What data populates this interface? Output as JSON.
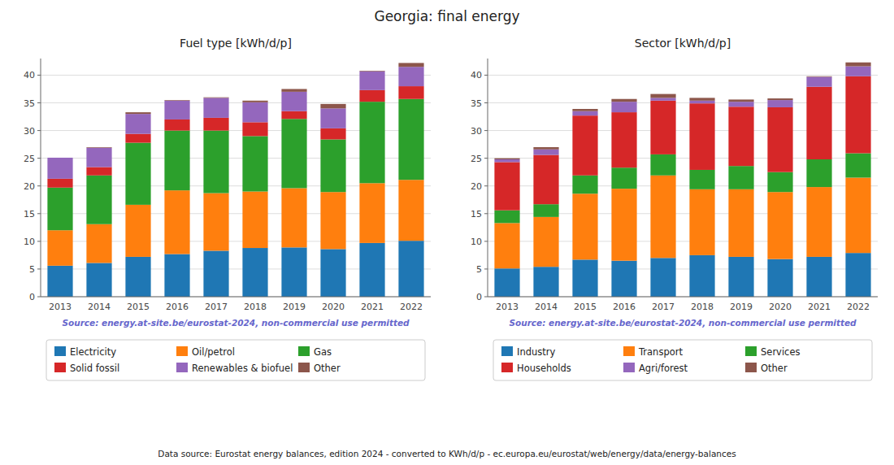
{
  "title": "Georgia: final energy",
  "annotations": [
    "Data source: Eurostat energy balances, edition 2024 - converted to KWh/d/p - ec.europa.eu/eurostat/web/energy/data/energy-balances"
  ],
  "chart_data": [
    {
      "type": "bar",
      "stacked": true,
      "title": "Fuel type [kWh/d/p]",
      "categories": [
        2013,
        2014,
        2015,
        2016,
        2017,
        2018,
        2019,
        2020,
        2021,
        2022
      ],
      "series": [
        {
          "name": "Electricity",
          "color": "#1f77b4",
          "values": [
            5.6,
            6.1,
            7.2,
            7.7,
            8.3,
            8.8,
            8.9,
            8.6,
            9.7,
            10.1
          ]
        },
        {
          "name": "Oil/petrol",
          "color": "#ff7f0e",
          "values": [
            6.4,
            7.0,
            9.4,
            11.5,
            10.4,
            10.2,
            10.7,
            10.3,
            10.8,
            11.0
          ]
        },
        {
          "name": "Gas",
          "color": "#2ca02c",
          "values": [
            7.7,
            8.8,
            11.2,
            10.8,
            11.3,
            10.0,
            12.5,
            9.5,
            14.7,
            14.6
          ]
        },
        {
          "name": "Solid fossil",
          "color": "#d62728",
          "values": [
            1.6,
            1.5,
            1.6,
            2.0,
            2.3,
            2.5,
            1.4,
            2.0,
            2.1,
            2.3
          ]
        },
        {
          "name": "Renewables & biofuel",
          "color": "#9467bd",
          "values": [
            3.8,
            3.5,
            3.6,
            3.4,
            3.6,
            3.6,
            3.5,
            3.6,
            3.4,
            3.5
          ]
        },
        {
          "name": "Other",
          "color": "#8c564b",
          "values": [
            0.0,
            0.1,
            0.3,
            0.1,
            0.1,
            0.3,
            0.5,
            0.8,
            0.1,
            0.7
          ]
        }
      ],
      "ylim": [
        0,
        43
      ],
      "yticks": [
        0,
        5,
        10,
        15,
        20,
        25,
        30,
        35,
        40
      ],
      "grid": true,
      "legend": "bottom",
      "annotations": [
        "Source: energy.at-site.be/eurostat-2024, non-commercial use permitted"
      ]
    },
    {
      "type": "bar",
      "stacked": true,
      "title": "Sector [kWh/d/p]",
      "categories": [
        2013,
        2014,
        2015,
        2016,
        2017,
        2018,
        2019,
        2020,
        2021,
        2022
      ],
      "series": [
        {
          "name": "Industry",
          "color": "#1f77b4",
          "values": [
            5.1,
            5.4,
            6.7,
            6.5,
            7.0,
            7.5,
            7.2,
            6.8,
            7.2,
            7.9
          ]
        },
        {
          "name": "Transport",
          "color": "#ff7f0e",
          "values": [
            8.2,
            9.0,
            11.9,
            13.0,
            14.9,
            11.9,
            12.2,
            12.1,
            12.6,
            13.6
          ]
        },
        {
          "name": "Services",
          "color": "#2ca02c",
          "values": [
            2.3,
            2.3,
            3.3,
            3.8,
            3.8,
            3.5,
            4.2,
            3.6,
            5.0,
            4.4
          ]
        },
        {
          "name": "Households",
          "color": "#d62728",
          "values": [
            8.7,
            8.9,
            10.8,
            10.0,
            9.7,
            12.0,
            10.7,
            11.7,
            13.1,
            13.9
          ]
        },
        {
          "name": "Agri/forest",
          "color": "#9467bd",
          "values": [
            0.5,
            1.0,
            0.8,
            1.9,
            0.5,
            0.5,
            0.9,
            1.3,
            1.8,
            1.8
          ]
        },
        {
          "name": "Other",
          "color": "#8c564b",
          "values": [
            0.2,
            0.4,
            0.4,
            0.5,
            0.7,
            0.5,
            0.4,
            0.3,
            0.1,
            0.7
          ]
        }
      ],
      "ylim": [
        0,
        43
      ],
      "yticks": [
        0,
        5,
        10,
        15,
        20,
        25,
        30,
        35,
        40
      ],
      "grid": true,
      "legend": "bottom",
      "annotations": [
        "Source: energy.at-site.be/eurostat-2024, non-commercial use permitted"
      ]
    }
  ]
}
